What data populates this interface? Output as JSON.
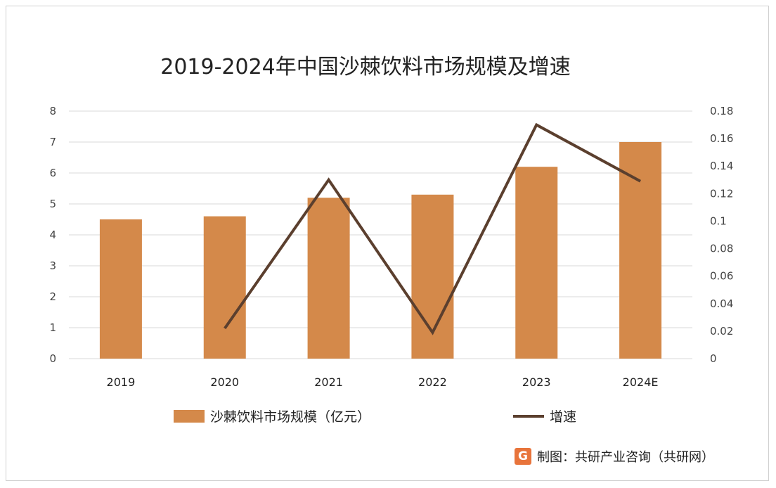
{
  "chart_data": {
    "type": "bar",
    "title": "2019-2024年中国沙棘饮料市场规模及增速",
    "categories": [
      "2019",
      "2020",
      "2021",
      "2022",
      "2023",
      "2024E"
    ],
    "series": [
      {
        "name": "沙棘饮料市场规模（亿元）",
        "type": "bar",
        "axis": "left",
        "color": "#D4894A",
        "values": [
          4.5,
          4.6,
          5.2,
          5.3,
          6.2,
          7.0
        ]
      },
      {
        "name": "增速",
        "type": "line",
        "axis": "right",
        "color": "#5B3F2E",
        "values": [
          null,
          0.022,
          0.13,
          0.019,
          0.17,
          0.129
        ]
      }
    ],
    "yleft": {
      "ylim": [
        0,
        8
      ],
      "ticks": [
        "0",
        "1",
        "2",
        "3",
        "4",
        "5",
        "6",
        "7",
        "8"
      ]
    },
    "yright": {
      "ylim": [
        0,
        0.18
      ],
      "ticks": [
        "0",
        "0.02",
        "0.04",
        "0.06",
        "0.08",
        "0.1",
        "0.12",
        "0.14",
        "0.16",
        "0.18"
      ]
    },
    "grid": true,
    "legend": "bottom"
  },
  "source": {
    "logo_letter": "G",
    "label": "制图：共研产业咨询（共研网）"
  }
}
